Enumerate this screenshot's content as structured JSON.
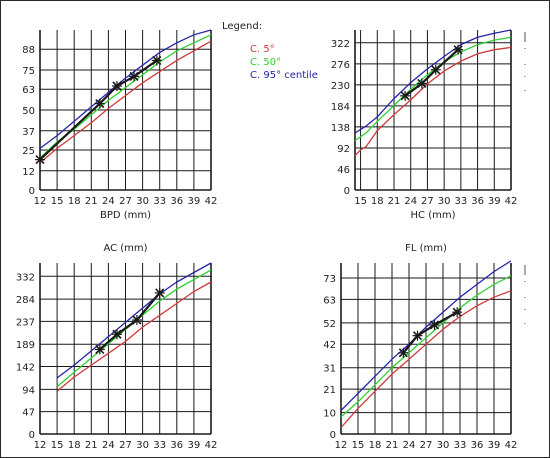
{
  "colors": {
    "p5": "#d03a3a",
    "p50": "#2fd02f",
    "p95": "#2424a8",
    "patient": "#1a1a1a",
    "extra": "#00c8c8"
  },
  "legend": {
    "title": "Legend:",
    "items": [
      {
        "label": "C. 5°",
        "color": "#d03a3a"
      },
      {
        "label": "C. 50°",
        "color": "#2fd02f"
      },
      {
        "label": "C. 95° centile",
        "color": "#2424a8"
      }
    ]
  },
  "chart_data": [
    {
      "type": "line",
      "id": "bpd",
      "xlabel": "BPD (mm)",
      "title": "",
      "x_ticks": [
        12,
        15,
        18,
        21,
        24,
        27,
        30,
        33,
        36,
        39,
        42
      ],
      "y_ticks": [
        0,
        12,
        25,
        37,
        50,
        63,
        75,
        88
      ],
      "xlim": [
        12,
        42
      ],
      "ylim": [
        0,
        100
      ],
      "series": [
        {
          "key": "p5",
          "x": [
            12,
            15,
            18,
            21,
            24,
            27,
            30,
            33,
            36,
            39,
            42
          ],
          "values": [
            17,
            26,
            34,
            42,
            51,
            59,
            67,
            74,
            81,
            87,
            93
          ]
        },
        {
          "key": "p50",
          "x": [
            12,
            15,
            18,
            21,
            24,
            27,
            30,
            33,
            36,
            39,
            42
          ],
          "values": [
            20,
            30,
            38,
            47,
            56,
            64,
            72,
            80,
            87,
            92,
            97
          ]
        },
        {
          "key": "p95",
          "x": [
            12,
            15,
            18,
            21,
            24,
            27,
            30,
            33,
            36,
            39,
            42
          ],
          "values": [
            26,
            34,
            43,
            52,
            61,
            70,
            78,
            86,
            92,
            97,
            100
          ]
        }
      ],
      "patient": {
        "x": [
          12,
          22.5,
          25.5,
          28.5,
          32.5
        ],
        "values": [
          19,
          54,
          65,
          71,
          81
        ]
      }
    },
    {
      "type": "line",
      "id": "hc",
      "xlabel": "HC (mm)",
      "title": "",
      "x_ticks": [
        15,
        18,
        21,
        24,
        27,
        30,
        33,
        36,
        39,
        42
      ],
      "y_ticks": [
        0,
        46,
        92,
        138,
        184,
        230,
        276,
        322
      ],
      "xlim": [
        14,
        42
      ],
      "ylim": [
        0,
        350
      ],
      "series": [
        {
          "key": "p5",
          "x": [
            14,
            15,
            16,
            18,
            21,
            24,
            27,
            30,
            33,
            36,
            39,
            42
          ],
          "values": [
            75,
            88,
            95,
            130,
            165,
            197,
            232,
            260,
            282,
            298,
            307,
            312
          ]
        },
        {
          "key": "p50",
          "x": [
            14,
            16,
            18,
            21,
            24,
            27,
            30,
            33,
            36,
            39,
            42
          ],
          "values": [
            108,
            125,
            150,
            185,
            220,
            252,
            280,
            302,
            318,
            328,
            334
          ]
        },
        {
          "key": "p95",
          "x": [
            14,
            16,
            18,
            21,
            24,
            27,
            30,
            33,
            36,
            39,
            42
          ],
          "values": [
            125,
            140,
            160,
            200,
            235,
            265,
            292,
            318,
            334,
            343,
            350
          ]
        }
      ],
      "patient": {
        "x": [
          23,
          26,
          28.5,
          32.5
        ],
        "values": [
          206,
          233,
          263,
          307
        ]
      }
    },
    {
      "type": "line",
      "id": "ac",
      "xlabel": "",
      "title": "AC (mm)",
      "x_ticks": [
        12,
        15,
        18,
        21,
        24,
        27,
        30,
        33,
        36,
        39,
        42
      ],
      "y_ticks": [
        0,
        47,
        94,
        142,
        189,
        237,
        284,
        332
      ],
      "xlim": [
        12,
        42
      ],
      "ylim": [
        0,
        360
      ],
      "series": [
        {
          "key": "p5",
          "x": [
            15,
            18,
            21,
            24,
            27,
            30,
            33,
            36,
            39,
            42
          ],
          "values": [
            90,
            120,
            145,
            170,
            195,
            225,
            250,
            275,
            300,
            320
          ]
        },
        {
          "key": "p50",
          "x": [
            15,
            18,
            21,
            24,
            27,
            30,
            33,
            36,
            39,
            42
          ],
          "values": [
            100,
            130,
            160,
            190,
            220,
            250,
            280,
            305,
            325,
            345
          ]
        },
        {
          "key": "p95",
          "x": [
            15,
            18,
            21,
            24,
            27,
            30,
            33,
            36,
            39,
            42
          ],
          "values": [
            118,
            145,
            175,
            205,
            235,
            265,
            295,
            320,
            340,
            360
          ]
        }
      ],
      "patient": {
        "x": [
          22.5,
          25.5,
          29,
          33
        ],
        "values": [
          178,
          210,
          240,
          297
        ]
      }
    },
    {
      "type": "line",
      "id": "fl",
      "xlabel": "",
      "title": "FL (mm)",
      "x_ticks": [
        12,
        15,
        18,
        21,
        24,
        27,
        30,
        33,
        36,
        39,
        42
      ],
      "y_ticks": [
        0,
        10,
        21,
        31,
        42,
        52,
        63,
        73
      ],
      "xlim": [
        12,
        42
      ],
      "ylim": [
        0,
        80
      ],
      "series": [
        {
          "key": "p5",
          "x": [
            12,
            15,
            18,
            21,
            24,
            27,
            30,
            33,
            36,
            39,
            42
          ],
          "values": [
            3,
            12,
            20,
            28,
            35,
            42,
            49,
            55,
            60,
            64,
            67
          ]
        },
        {
          "key": "p50",
          "x": [
            12,
            15,
            18,
            21,
            24,
            27,
            30,
            33,
            36,
            39,
            42
          ],
          "values": [
            8,
            15,
            23,
            31,
            38,
            45,
            52,
            59,
            65,
            70,
            74
          ]
        },
        {
          "key": "p95",
          "x": [
            12,
            15,
            18,
            21,
            24,
            27,
            30,
            33,
            36,
            39,
            42
          ],
          "values": [
            11,
            19,
            27,
            35,
            42,
            50,
            57,
            64,
            70,
            76,
            81
          ]
        }
      ],
      "patient": {
        "x": [
          23,
          25.5,
          28.5,
          32.5
        ],
        "values": [
          38,
          46,
          51,
          57
        ]
      }
    }
  ]
}
